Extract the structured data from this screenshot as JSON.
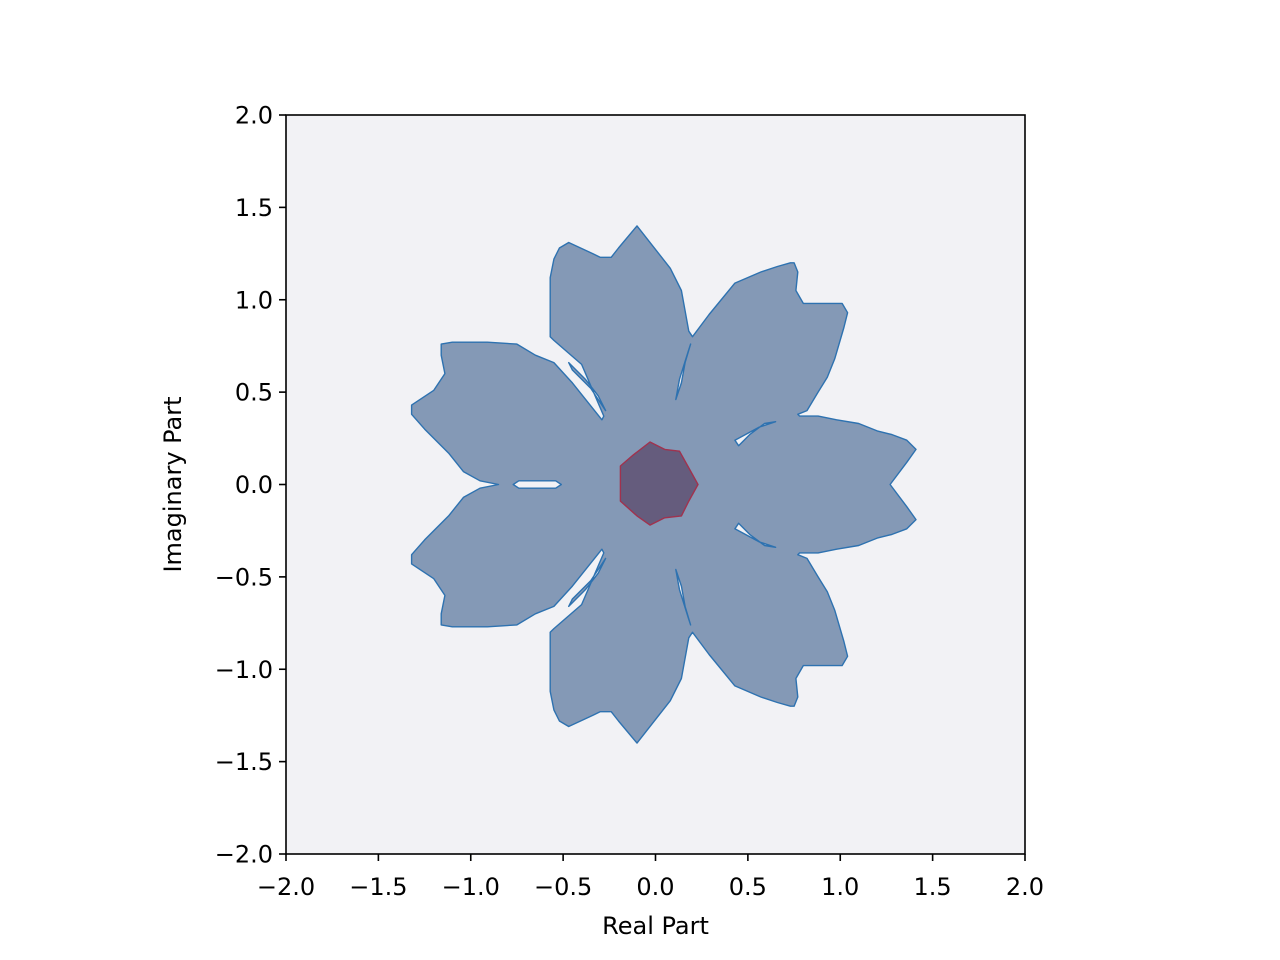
{
  "chart_data": {
    "type": "area",
    "title": "",
    "xlabel": "Real Part",
    "ylabel": "Imaginary Part",
    "xlim": [
      -2.0,
      2.0
    ],
    "ylim": [
      -2.0,
      2.0
    ],
    "xticks": [
      -2.0,
      -1.5,
      -1.0,
      -0.5,
      0.0,
      0.5,
      1.0,
      1.5,
      2.0
    ],
    "yticks": [
      -2.0,
      -1.5,
      -1.0,
      -0.5,
      0.0,
      0.5,
      1.0,
      1.5,
      2.0
    ],
    "xtick_labels": [
      "−2.0",
      "−1.5",
      "−1.0",
      "−0.5",
      "0.0",
      "0.5",
      "1.0",
      "1.5",
      "2.0"
    ],
    "ytick_labels": [
      "−2.0",
      "−1.5",
      "−1.0",
      "−0.5",
      "0.0",
      "0.5",
      "1.0",
      "1.5",
      "2.0"
    ],
    "grid": false,
    "legend": "none",
    "colors": {
      "axes_background": "#f2f2f5",
      "outer_region": "#8499b6",
      "outer_edge": "#2e72b0",
      "inner_region": "#655c7d",
      "inner_edge": "#a0324e"
    },
    "regions": [
      {
        "role": "outer",
        "points": [
          [
            -0.1,
            1.4
          ],
          [
            0.08,
            1.17
          ],
          [
            0.14,
            1.05
          ],
          [
            0.18,
            0.83
          ],
          [
            0.2,
            0.8
          ],
          [
            0.29,
            0.92
          ],
          [
            0.43,
            1.09
          ],
          [
            0.57,
            1.15
          ],
          [
            0.66,
            1.18
          ],
          [
            0.73,
            1.2
          ],
          [
            0.75,
            1.2
          ],
          [
            0.77,
            1.15
          ],
          [
            0.76,
            1.05
          ],
          [
            0.8,
            0.98
          ],
          [
            1.01,
            0.98
          ],
          [
            1.04,
            0.93
          ],
          [
            1.02,
            0.85
          ],
          [
            0.97,
            0.68
          ],
          [
            0.93,
            0.58
          ],
          [
            0.88,
            0.5
          ],
          [
            0.82,
            0.4
          ],
          [
            0.77,
            0.38
          ],
          [
            0.78,
            0.37
          ],
          [
            0.88,
            0.37
          ],
          [
            0.98,
            0.35
          ],
          [
            1.1,
            0.33
          ],
          [
            1.2,
            0.29
          ],
          [
            1.28,
            0.27
          ],
          [
            1.36,
            0.24
          ],
          [
            1.41,
            0.19
          ],
          [
            1.36,
            0.12
          ],
          [
            1.27,
            0.0
          ],
          [
            1.36,
            -0.12
          ],
          [
            1.41,
            -0.19
          ],
          [
            1.36,
            -0.24
          ],
          [
            1.28,
            -0.27
          ],
          [
            1.2,
            -0.29
          ],
          [
            1.1,
            -0.33
          ],
          [
            0.98,
            -0.35
          ],
          [
            0.88,
            -0.37
          ],
          [
            0.78,
            -0.37
          ],
          [
            0.77,
            -0.38
          ],
          [
            0.82,
            -0.4
          ],
          [
            0.88,
            -0.5
          ],
          [
            0.93,
            -0.58
          ],
          [
            0.97,
            -0.68
          ],
          [
            1.02,
            -0.85
          ],
          [
            1.04,
            -0.93
          ],
          [
            1.01,
            -0.98
          ],
          [
            0.8,
            -0.98
          ],
          [
            0.76,
            -1.05
          ],
          [
            0.77,
            -1.15
          ],
          [
            0.75,
            -1.2
          ],
          [
            0.73,
            -1.2
          ],
          [
            0.66,
            -1.18
          ],
          [
            0.57,
            -1.15
          ],
          [
            0.43,
            -1.09
          ],
          [
            0.29,
            -0.92
          ],
          [
            0.2,
            -0.8
          ],
          [
            0.18,
            -0.83
          ],
          [
            0.14,
            -1.05
          ],
          [
            0.08,
            -1.17
          ],
          [
            -0.1,
            -1.4
          ],
          [
            -0.2,
            -1.28
          ],
          [
            -0.24,
            -1.23
          ],
          [
            -0.3,
            -1.23
          ],
          [
            -0.34,
            -1.25
          ],
          [
            -0.47,
            -1.31
          ],
          [
            -0.52,
            -1.28
          ],
          [
            -0.55,
            -1.22
          ],
          [
            -0.57,
            -1.12
          ],
          [
            -0.57,
            -0.95
          ],
          [
            -0.57,
            -0.8
          ],
          [
            -0.55,
            -0.78
          ],
          [
            -0.4,
            -0.65
          ],
          [
            -0.28,
            -0.37
          ],
          [
            -0.29,
            -0.35
          ],
          [
            -0.45,
            -0.55
          ],
          [
            -0.55,
            -0.66
          ],
          [
            -0.65,
            -0.7
          ],
          [
            -0.75,
            -0.76
          ],
          [
            -0.91,
            -0.77
          ],
          [
            -1.1,
            -0.77
          ],
          [
            -1.16,
            -0.76
          ],
          [
            -1.16,
            -0.7
          ],
          [
            -1.14,
            -0.6
          ],
          [
            -1.2,
            -0.51
          ],
          [
            -1.26,
            -0.47
          ],
          [
            -1.32,
            -0.43
          ],
          [
            -1.32,
            -0.38
          ],
          [
            -1.25,
            -0.3
          ],
          [
            -1.12,
            -0.17
          ],
          [
            -1.04,
            -0.07
          ],
          [
            -0.95,
            -0.02
          ],
          [
            -0.85,
            0.0
          ],
          [
            -0.95,
            0.02
          ],
          [
            -1.04,
            0.07
          ],
          [
            -1.12,
            0.17
          ],
          [
            -1.25,
            0.3
          ],
          [
            -1.32,
            0.38
          ],
          [
            -1.32,
            0.43
          ],
          [
            -1.26,
            0.47
          ],
          [
            -1.2,
            0.51
          ],
          [
            -1.14,
            0.6
          ],
          [
            -1.16,
            0.7
          ],
          [
            -1.16,
            0.76
          ],
          [
            -1.1,
            0.77
          ],
          [
            -0.91,
            0.77
          ],
          [
            -0.75,
            0.76
          ],
          [
            -0.65,
            0.7
          ],
          [
            -0.55,
            0.66
          ],
          [
            -0.45,
            0.55
          ],
          [
            -0.29,
            0.35
          ],
          [
            -0.28,
            0.37
          ],
          [
            -0.4,
            0.65
          ],
          [
            -0.55,
            0.78
          ],
          [
            -0.57,
            0.8
          ],
          [
            -0.57,
            0.95
          ],
          [
            -0.57,
            1.12
          ],
          [
            -0.55,
            1.22
          ],
          [
            -0.52,
            1.28
          ],
          [
            -0.47,
            1.31
          ],
          [
            -0.34,
            1.25
          ],
          [
            -0.3,
            1.23
          ],
          [
            -0.24,
            1.23
          ],
          [
            -0.2,
            1.28
          ]
        ]
      },
      {
        "role": "inner",
        "points": [
          [
            -0.03,
            0.23
          ],
          [
            0.05,
            0.19
          ],
          [
            0.13,
            0.18
          ],
          [
            0.18,
            0.09
          ],
          [
            0.23,
            0.0
          ],
          [
            0.18,
            -0.09
          ],
          [
            0.14,
            -0.17
          ],
          [
            0.05,
            -0.18
          ],
          [
            -0.03,
            -0.22
          ],
          [
            -0.1,
            -0.17
          ],
          [
            -0.19,
            -0.09
          ],
          [
            -0.19,
            0.02
          ],
          [
            -0.19,
            0.1
          ],
          [
            -0.12,
            0.16
          ]
        ]
      }
    ],
    "holes": [
      [
        [
          -0.74,
          0.02
        ],
        [
          -0.54,
          0.02
        ],
        [
          -0.51,
          0.0
        ],
        [
          -0.54,
          -0.02
        ],
        [
          -0.74,
          -0.02
        ],
        [
          -0.77,
          0.0
        ]
      ],
      [
        [
          0.43,
          0.24
        ],
        [
          0.56,
          0.31
        ],
        [
          0.65,
          0.34
        ],
        [
          0.59,
          0.33
        ],
        [
          0.51,
          0.27
        ],
        [
          0.45,
          0.21
        ]
      ],
      [
        [
          0.43,
          -0.24
        ],
        [
          0.56,
          -0.31
        ],
        [
          0.65,
          -0.34
        ],
        [
          0.59,
          -0.33
        ],
        [
          0.51,
          -0.27
        ],
        [
          0.45,
          -0.21
        ]
      ],
      [
        [
          0.18,
          0.73
        ],
        [
          0.13,
          0.57
        ],
        [
          0.11,
          0.46
        ],
        [
          0.14,
          0.55
        ],
        [
          0.16,
          0.66
        ],
        [
          0.19,
          0.76
        ]
      ],
      [
        [
          0.18,
          -0.73
        ],
        [
          0.13,
          -0.57
        ],
        [
          0.11,
          -0.46
        ],
        [
          0.14,
          -0.55
        ],
        [
          0.16,
          -0.66
        ],
        [
          0.19,
          -0.76
        ]
      ],
      [
        [
          -0.45,
          0.62
        ],
        [
          -0.35,
          0.52
        ],
        [
          -0.27,
          0.4
        ],
        [
          -0.31,
          0.48
        ],
        [
          -0.38,
          0.57
        ],
        [
          -0.47,
          0.66
        ]
      ],
      [
        [
          -0.45,
          -0.62
        ],
        [
          -0.35,
          -0.52
        ],
        [
          -0.27,
          -0.4
        ],
        [
          -0.31,
          -0.48
        ],
        [
          -0.38,
          -0.57
        ],
        [
          -0.47,
          -0.66
        ]
      ]
    ]
  }
}
